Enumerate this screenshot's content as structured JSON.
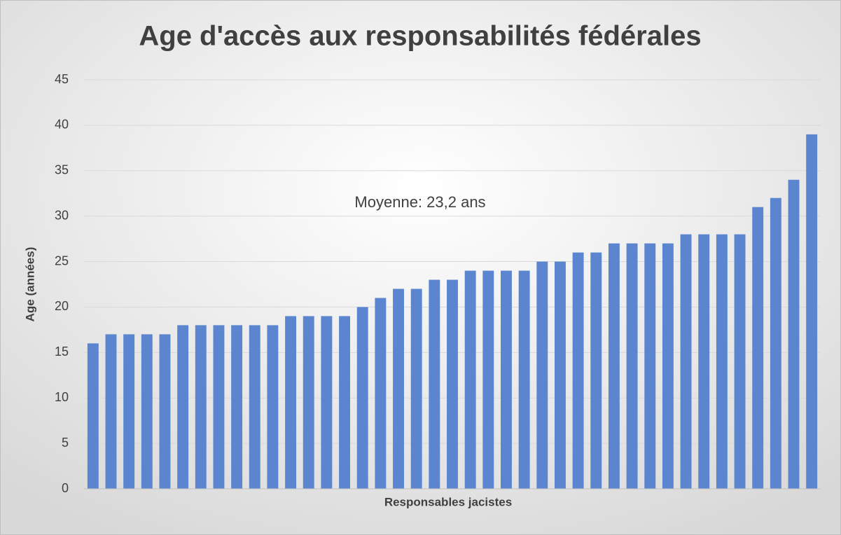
{
  "chart_data": {
    "type": "bar",
    "title": "Age d'accès aux responsabilités fédérales",
    "x_label": "Responsables jacistes",
    "y_label": "Age (années)",
    "annotation": "Moyenne: 23,2 ans",
    "categories": [
      null,
      null,
      null,
      null,
      null,
      null,
      null,
      null,
      null,
      null,
      null,
      null,
      null,
      null,
      null,
      null,
      null,
      null,
      null,
      null,
      null,
      null,
      null,
      null,
      null,
      null,
      null,
      null,
      null,
      null,
      null,
      null,
      null,
      null,
      null,
      null,
      null,
      null,
      null,
      null,
      null
    ],
    "values": [
      16,
      17,
      17,
      17,
      17,
      18,
      18,
      18,
      18,
      18,
      18,
      19,
      19,
      19,
      19,
      20,
      21,
      22,
      22,
      23,
      23,
      24,
      24,
      24,
      24,
      25,
      25,
      26,
      26,
      27,
      27,
      27,
      27,
      28,
      28,
      28,
      28,
      31,
      32,
      34,
      39
    ],
    "color": "#5b86cf",
    "ylim": [
      0,
      45
    ],
    "yticks": [
      0,
      5,
      10,
      15,
      20,
      25,
      30,
      35,
      40,
      45
    ],
    "grid": true
  }
}
